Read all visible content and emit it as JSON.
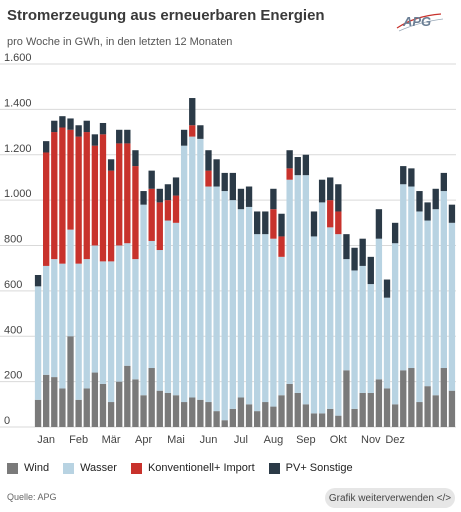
{
  "header": {
    "title": "Stromerzeugung aus erneuerbaren Energien",
    "subtitle": "pro Woche in GWh, in den letzten 12 Monaten",
    "logo_text": "APG"
  },
  "footer": {
    "source": "Quelle: APG",
    "reuse_label": "Grafik weiterverwenden </>"
  },
  "colors": {
    "wind": "#7a7a7a",
    "wasser": "#b8d3e2",
    "import": "#c8322c",
    "pv": "#2b3a47"
  },
  "chart_data": {
    "type": "bar",
    "stacked": true,
    "title": "Stromerzeugung aus erneuerbaren Energien",
    "subtitle": "pro Woche in GWh, in den letzten 12 Monaten",
    "ylim": [
      0,
      1600
    ],
    "yticks": [
      0,
      200,
      400,
      600,
      800,
      1000,
      1200,
      1400,
      1600
    ],
    "ytick_labels": [
      "0",
      "200",
      "400",
      "600",
      "800",
      "1.000",
      "1.200",
      "1.400",
      "1.600"
    ],
    "month_labels": [
      {
        "label": "Jan",
        "week": 1
      },
      {
        "label": "Feb",
        "week": 5
      },
      {
        "label": "Mär",
        "week": 9
      },
      {
        "label": "Apr",
        "week": 13
      },
      {
        "label": "Mai",
        "week": 17
      },
      {
        "label": "Jun",
        "week": 21
      },
      {
        "label": "Jul",
        "week": 25
      },
      {
        "label": "Aug",
        "week": 29
      },
      {
        "label": "Sep",
        "week": 33
      },
      {
        "label": "Okt",
        "week": 37
      },
      {
        "label": "Nov",
        "week": 41
      },
      {
        "label": "Dez",
        "week": 44
      }
    ],
    "grid": true,
    "legend_position": "bottom",
    "series": [
      {
        "name": "Wind",
        "color": "#7a7a7a",
        "values": [
          120,
          230,
          220,
          170,
          400,
          120,
          170,
          240,
          190,
          110,
          200,
          270,
          210,
          140,
          260,
          160,
          150,
          140,
          110,
          130,
          120,
          110,
          70,
          30,
          80,
          130,
          100,
          70,
          110,
          90,
          140,
          190,
          150,
          100,
          60,
          60,
          80,
          50,
          250,
          80,
          150,
          150,
          210,
          170,
          100,
          250,
          260,
          110,
          180,
          140,
          260,
          160
        ]
      },
      {
        "name": "Wasser",
        "color": "#b8d3e2",
        "values": [
          500,
          480,
          520,
          550,
          470,
          600,
          570,
          560,
          540,
          620,
          600,
          540,
          530,
          840,
          560,
          620,
          760,
          760,
          1130,
          1150,
          1150,
          950,
          990,
          1010,
          920,
          830,
          870,
          780,
          740,
          740,
          610,
          900,
          960,
          1010,
          780,
          930,
          800,
          800,
          490,
          610,
          560,
          480,
          620,
          400,
          710,
          820,
          800,
          840,
          730,
          820,
          780,
          740
        ]
      },
      {
        "name": "Konventionell+ Import",
        "color": "#c8322c",
        "values": [
          0,
          500,
          560,
          600,
          440,
          560,
          560,
          440,
          560,
          400,
          450,
          440,
          410,
          0,
          230,
          210,
          90,
          120,
          0,
          50,
          0,
          70,
          0,
          0,
          0,
          0,
          0,
          0,
          0,
          130,
          90,
          50,
          0,
          0,
          0,
          0,
          120,
          100,
          0,
          0,
          0,
          0,
          0,
          0,
          0,
          0,
          0,
          0,
          0,
          0,
          0,
          0
        ]
      },
      {
        "name": "PV+ Sonstige",
        "color": "#2b3a47",
        "values": [
          50,
          50,
          50,
          50,
          50,
          50,
          50,
          50,
          50,
          50,
          60,
          60,
          70,
          60,
          80,
          60,
          70,
          80,
          70,
          120,
          60,
          90,
          120,
          80,
          120,
          90,
          90,
          100,
          100,
          90,
          100,
          80,
          80,
          90,
          110,
          100,
          100,
          120,
          110,
          100,
          120,
          120,
          130,
          80,
          90,
          80,
          80,
          90,
          80,
          90,
          80,
          80
        ]
      }
    ]
  }
}
